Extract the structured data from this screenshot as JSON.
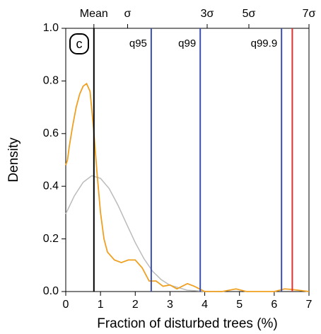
{
  "chart_data": {
    "type": "line",
    "panel_label": "c",
    "xlabel": "Fraction of disturbed trees (%)",
    "ylabel": "Density",
    "xlim": [
      0,
      7
    ],
    "ylim": [
      0,
      1
    ],
    "xticks": [
      0,
      1,
      2,
      3,
      4,
      5,
      6,
      7
    ],
    "yticks": [
      {
        "value": 0,
        "label": "0.0"
      },
      {
        "value": 0.2,
        "label": "0.2"
      },
      {
        "value": 0.4,
        "label": "0.4"
      },
      {
        "value": 0.6,
        "label": "0.6"
      },
      {
        "value": 0.8,
        "label": "0.8"
      },
      {
        "value": 1,
        "label": "1.0"
      }
    ],
    "top_ticks": [
      {
        "value": 0.81,
        "label": "Mean"
      },
      {
        "value": 1.78,
        "label": "σ"
      },
      {
        "value": 4.07,
        "label": "3σ"
      },
      {
        "value": 5.27,
        "label": "5σ"
      },
      {
        "value": 7,
        "label": "7σ"
      }
    ],
    "vlines": [
      {
        "x": 0.81,
        "color": "#000000"
      },
      {
        "x": 2.46,
        "color": "#3a4fb0",
        "label": "q95"
      },
      {
        "x": 3.87,
        "color": "#3a4fb0",
        "label": "q99"
      },
      {
        "x": 6.21,
        "color": "#3a4fb0",
        "label": "q99.9"
      },
      {
        "x": 6.52,
        "color": "#e03030"
      }
    ],
    "series": [
      {
        "color": "#bbbbbb",
        "x": [
          0,
          0.25,
          0.5,
          0.75,
          1,
          1.25,
          1.5,
          1.75,
          2,
          2.25,
          2.5,
          2.75,
          3,
          3.5,
          4,
          4.5
        ],
        "values": [
          0.295,
          0.364,
          0.415,
          0.44,
          0.43,
          0.391,
          0.329,
          0.257,
          0.186,
          0.125,
          0.077,
          0.045,
          0.024,
          0.005,
          0.001,
          0
        ]
      },
      {
        "color": "#f0a020",
        "x": [
          0,
          0.05,
          0.1,
          0.2,
          0.3,
          0.4,
          0.5,
          0.6,
          0.7,
          0.8,
          0.9,
          1.0,
          1.1,
          1.2,
          1.4,
          1.6,
          1.8,
          2.0,
          2.2,
          2.4,
          2.6,
          2.8,
          3.0,
          3.2,
          3.5,
          3.7,
          4.0,
          4.5,
          4.9,
          5.2,
          6.0,
          6.3,
          6.5,
          7
        ],
        "values": [
          0.48,
          0.5,
          0.55,
          0.63,
          0.7,
          0.75,
          0.78,
          0.79,
          0.76,
          0.62,
          0.45,
          0.3,
          0.2,
          0.15,
          0.12,
          0.11,
          0.12,
          0.12,
          0.09,
          0.04,
          0.04,
          0.02,
          0.025,
          0.01,
          0.03,
          0.02,
          0,
          0,
          0.01,
          0,
          0,
          0.01,
          0.008,
          0
        ]
      }
    ]
  }
}
